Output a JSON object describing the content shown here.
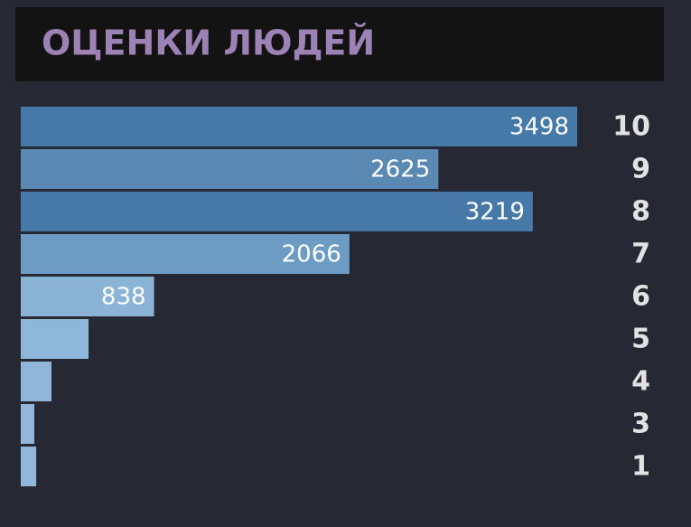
{
  "chart_data": {
    "type": "bar",
    "orientation": "horizontal",
    "title": "ОЦЕНКИ ЛЮДЕЙ",
    "categories": [
      "10",
      "9",
      "8",
      "7",
      "6",
      "5",
      "4",
      "3",
      "1"
    ],
    "values": [
      3498,
      2625,
      3219,
      2066,
      838,
      426,
      193,
      85,
      97
    ],
    "colors": [
      "#4479a8",
      "#5a8ab3",
      "#4679a8",
      "#6c9bc3",
      "#8ab3d6",
      "#8eb6d9",
      "#90b7da",
      "#91b8db",
      "#91b8db"
    ]
  }
}
